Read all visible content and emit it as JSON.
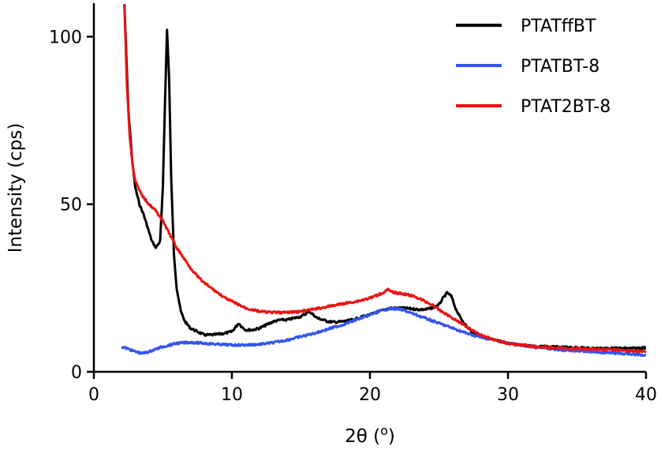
{
  "chart_data": {
    "type": "line",
    "title": "",
    "xlabel": "2θ (o)",
    "ylabel": "Intensity (cps)",
    "xlim": [
      0,
      40
    ],
    "ylim": [
      0,
      110
    ],
    "x_ticks": [
      0,
      10,
      20,
      30,
      40
    ],
    "y_ticks": [
      0,
      50,
      100
    ],
    "grid": false,
    "legend_position": "top-right",
    "series": [
      {
        "name": "PTATffBT",
        "color": "#000000",
        "x": [
          2.2,
          2.5,
          2.8,
          3.0,
          3.3,
          3.6,
          3.9,
          4.2,
          4.5,
          4.8,
          5.0,
          5.15,
          5.3,
          5.45,
          5.6,
          5.8,
          6.0,
          6.3,
          6.6,
          7.0,
          7.5,
          8.0,
          8.5,
          9.0,
          9.5,
          10.0,
          10.3,
          10.5,
          10.7,
          11.0,
          11.5,
          12.0,
          12.5,
          13.0,
          13.5,
          14.0,
          14.5,
          15.0,
          15.3,
          15.6,
          15.9,
          16.2,
          16.6,
          17.0,
          17.5,
          18.0,
          18.5,
          19.0,
          19.5,
          20.0,
          20.5,
          21.0,
          21.5,
          22.0,
          22.5,
          23.0,
          23.5,
          24.0,
          24.5,
          25.0,
          25.3,
          25.6,
          25.9,
          26.2,
          26.5,
          27.0,
          27.5,
          28.0,
          28.5,
          29.0,
          29.5,
          30.0,
          31.0,
          32.0,
          33.0,
          34.0,
          35.0,
          36.0,
          37.0,
          38.0,
          39.0,
          40.0
        ],
        "y": [
          111,
          78,
          62,
          55,
          50,
          47,
          43,
          39,
          37,
          39,
          55,
          80,
          102,
          88,
          58,
          35,
          25,
          18,
          15,
          13,
          12,
          11,
          11,
          11.2,
          11.5,
          12,
          13.5,
          14.5,
          13.5,
          12.5,
          12.5,
          13,
          14,
          15,
          15.5,
          15.5,
          16,
          16.5,
          17.2,
          18,
          17,
          16,
          15.5,
          15,
          14.8,
          15,
          15.3,
          15.8,
          16.5,
          17,
          17.8,
          18.5,
          19,
          19,
          19,
          18.8,
          18.6,
          18.6,
          19,
          20,
          22,
          23.6,
          22.5,
          19,
          16.5,
          13.5,
          11.5,
          10.5,
          10,
          9.5,
          9,
          8.5,
          8,
          7.5,
          7.5,
          7.3,
          7.2,
          7,
          7,
          7,
          7,
          7.2
        ]
      },
      {
        "name": "PTATBT-8",
        "color": "#3355ee",
        "x": [
          2.0,
          2.5,
          3.0,
          3.5,
          4.0,
          4.5,
          5.0,
          5.5,
          6.0,
          7.0,
          8.0,
          9.0,
          10.0,
          11.0,
          12.0,
          13.0,
          14.0,
          15.0,
          16.0,
          17.0,
          18.0,
          19.0,
          20.0,
          20.5,
          21.0,
          21.5,
          22.0,
          22.5,
          23.0,
          24.0,
          25.0,
          26.0,
          27.0,
          28.0,
          29.0,
          30.0,
          32.0,
          34.0,
          36.0,
          38.0,
          40.0
        ],
        "y": [
          7.5,
          6.8,
          6.0,
          5.5,
          6.0,
          6.8,
          7.5,
          8.0,
          8.5,
          8.8,
          8.5,
          8.2,
          8.0,
          8.0,
          8.2,
          8.7,
          9.5,
          10.5,
          11.5,
          12.8,
          14.0,
          15.5,
          17.0,
          17.8,
          18.5,
          18.8,
          18.8,
          18.3,
          17.5,
          16.0,
          14.5,
          13.0,
          11.5,
          10.3,
          9.5,
          8.5,
          7.3,
          6.5,
          6.0,
          5.5,
          5.0
        ]
      },
      {
        "name": "PTAT2BT-8",
        "color": "#ee1111",
        "x": [
          2.2,
          2.4,
          2.6,
          2.8,
          3.0,
          3.3,
          3.6,
          4.0,
          4.5,
          5.0,
          5.5,
          6.0,
          6.5,
          7.0,
          7.5,
          8.0,
          8.5,
          9.0,
          9.5,
          10.0,
          10.5,
          11.0,
          11.5,
          12.0,
          13.0,
          14.0,
          15.0,
          16.0,
          17.0,
          18.0,
          19.0,
          20.0,
          20.5,
          21.0,
          21.3,
          21.6,
          22.0,
          22.5,
          23.0,
          23.5,
          24.0,
          24.5,
          25.0,
          26.0,
          27.0,
          28.0,
          29.0,
          30.0,
          32.0,
          34.0,
          36.0,
          38.0,
          40.0
        ],
        "y": [
          111,
          85,
          70,
          62,
          57,
          54,
          52,
          50,
          48,
          45,
          41,
          37,
          34,
          31,
          28.5,
          26.5,
          25,
          23.5,
          22,
          21,
          20,
          19,
          18.5,
          18,
          17.7,
          17.7,
          18,
          18.7,
          19.5,
          20.3,
          21,
          22,
          22.8,
          23.7,
          24.5,
          23.8,
          23.5,
          23.2,
          22.7,
          22,
          21,
          20,
          18.5,
          16,
          13.5,
          11,
          9.5,
          8.5,
          7.5,
          7,
          6.8,
          6.5,
          6.0
        ]
      }
    ]
  }
}
